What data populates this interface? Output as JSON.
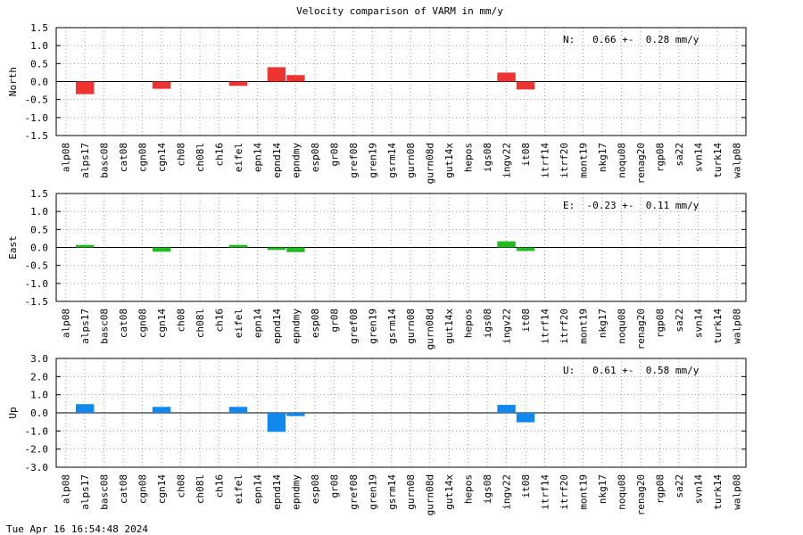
{
  "title": "Velocity comparison of VARM in mm/y",
  "timestamp": "Tue Apr 16 16:54:48 2024",
  "chart_data": [
    {
      "type": "bar",
      "ylabel": "North",
      "ylim": [
        -1.5,
        1.5
      ],
      "yticks": [
        "1.5",
        "1.0",
        "0.5",
        "0.0",
        "-0.5",
        "-1.0",
        "-1.5"
      ],
      "grid": true,
      "color": "#ee3333",
      "annotation": "N:   0.66 +-  0.28 mm/y",
      "categories": [
        "alp08",
        "alps17",
        "basc08",
        "cat08",
        "cgn08",
        "cgn14",
        "ch08",
        "ch08l",
        "ch16",
        "eifel",
        "epn14",
        "epnd14",
        "epndmy",
        "esp08",
        "gr08",
        "gref08",
        "gren19",
        "gsrm14",
        "gurn08",
        "gurn08d",
        "gut14x",
        "hepos",
        "igs08",
        "ingv22",
        "it08",
        "itrf14",
        "itrf20",
        "mont19",
        "nkg17",
        "noqu08",
        "renag20",
        "rgp08",
        "sa22",
        "svn14",
        "turk14",
        "walp08"
      ],
      "values": [
        0,
        -0.35,
        0,
        0,
        0,
        -0.2,
        0,
        0,
        0,
        -0.12,
        0,
        0.4,
        0.18,
        0,
        0,
        0,
        0,
        0,
        0,
        0,
        0,
        0,
        0,
        0.25,
        -0.22,
        0,
        0,
        0,
        0,
        0,
        0,
        0,
        0,
        0,
        0,
        0
      ]
    },
    {
      "type": "bar",
      "ylabel": "East",
      "ylim": [
        -1.5,
        1.5
      ],
      "yticks": [
        "1.5",
        "1.0",
        "0.5",
        "0.0",
        "-0.5",
        "-1.0",
        "-1.5"
      ],
      "grid": true,
      "color": "#22bb22",
      "annotation": "E:  -0.23 +-  0.11 mm/y",
      "categories": [
        "alp08",
        "alps17",
        "basc08",
        "cat08",
        "cgn08",
        "cgn14",
        "ch08",
        "ch08l",
        "ch16",
        "eifel",
        "epn14",
        "epnd14",
        "epndmy",
        "esp08",
        "gr08",
        "gref08",
        "gren19",
        "gsrm14",
        "gurn08",
        "gurn08d",
        "gut14x",
        "hepos",
        "igs08",
        "ingv22",
        "it08",
        "itrf14",
        "itrf20",
        "mont19",
        "nkg17",
        "noqu08",
        "renag20",
        "rgp08",
        "sa22",
        "svn14",
        "turk14",
        "walp08"
      ],
      "values": [
        0,
        0.07,
        0,
        0,
        0,
        -0.12,
        0,
        0,
        0,
        0.07,
        0,
        -0.07,
        -0.13,
        0,
        0,
        0,
        0,
        0,
        0,
        0,
        0,
        0,
        0,
        0.17,
        -0.1,
        0,
        0,
        0,
        0,
        0,
        0,
        0,
        0,
        0,
        0,
        0
      ]
    },
    {
      "type": "bar",
      "ylabel": "Up",
      "ylim": [
        -3.0,
        3.0
      ],
      "yticks": [
        "3.0",
        "2.0",
        "1.0",
        "0.0",
        "-1.0",
        "-2.0",
        "-3.0"
      ],
      "grid": true,
      "color": "#1188ee",
      "annotation": "U:   0.61 +-  0.58 mm/y",
      "categories": [
        "alp08",
        "alps17",
        "basc08",
        "cat08",
        "cgn08",
        "cgn14",
        "ch08",
        "ch08l",
        "ch16",
        "eifel",
        "epn14",
        "epnd14",
        "epndmy",
        "esp08",
        "gr08",
        "gref08",
        "gren19",
        "gsrm14",
        "gurn08",
        "gurn08d",
        "gut14x",
        "hepos",
        "igs08",
        "ingv22",
        "it08",
        "itrf14",
        "itrf20",
        "mont19",
        "nkg17",
        "noqu08",
        "renag20",
        "rgp08",
        "sa22",
        "svn14",
        "turk14",
        "walp08"
      ],
      "values": [
        0,
        0.48,
        0,
        0,
        0,
        0.33,
        0,
        0,
        0,
        0.33,
        0,
        -1.05,
        -0.18,
        0,
        0,
        0,
        0,
        0,
        0,
        0,
        0,
        0,
        0,
        0.44,
        -0.52,
        0,
        0,
        0,
        0,
        0,
        0,
        0,
        0,
        0,
        0,
        0
      ]
    }
  ]
}
